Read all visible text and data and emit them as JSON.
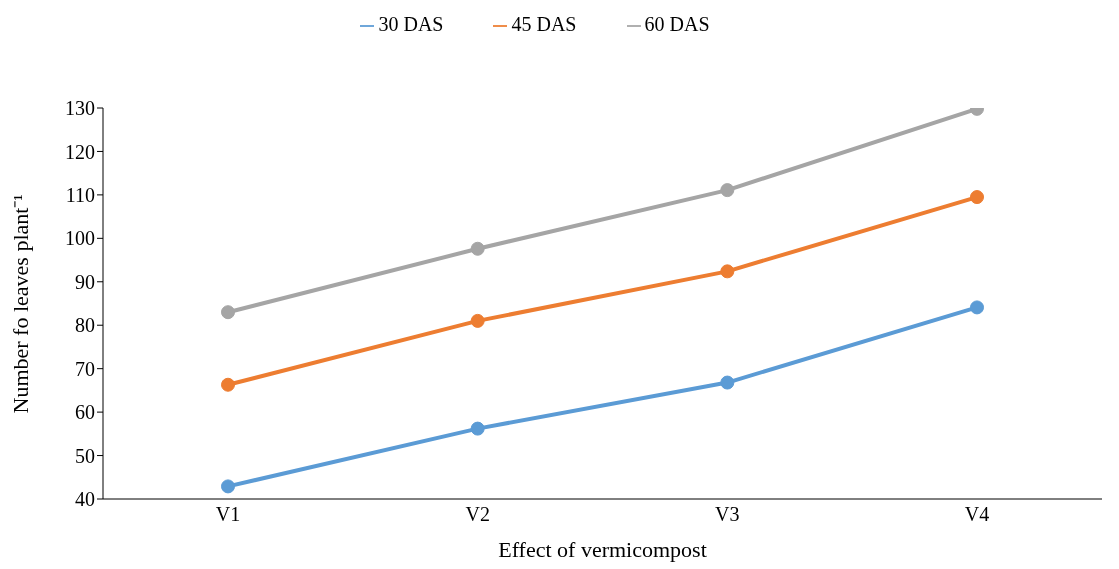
{
  "chart_data": {
    "type": "line",
    "xlabel": "Effect of vermicompost",
    "ylabel": "Number fo leaves plant⁻¹",
    "categories": [
      "V1",
      "V2",
      "V3",
      "V4"
    ],
    "series": [
      {
        "name": "30 DAS",
        "color": "#5b9bd5",
        "values": [
          42.9,
          56.2,
          66.8,
          84.1
        ]
      },
      {
        "name": "45 DAS",
        "color": "#ed7d31",
        "values": [
          66.3,
          81.0,
          92.4,
          109.5
        ]
      },
      {
        "name": "60 DAS",
        "color": "#a5a5a5",
        "values": [
          83.0,
          97.6,
          111.1,
          129.8
        ]
      }
    ],
    "ylim": [
      40,
      130
    ],
    "yticks": [
      40,
      50,
      60,
      70,
      80,
      90,
      100,
      110,
      120,
      130
    ],
    "grid": false,
    "legend": "top",
    "marker": "circle",
    "line_style": "solid"
  }
}
